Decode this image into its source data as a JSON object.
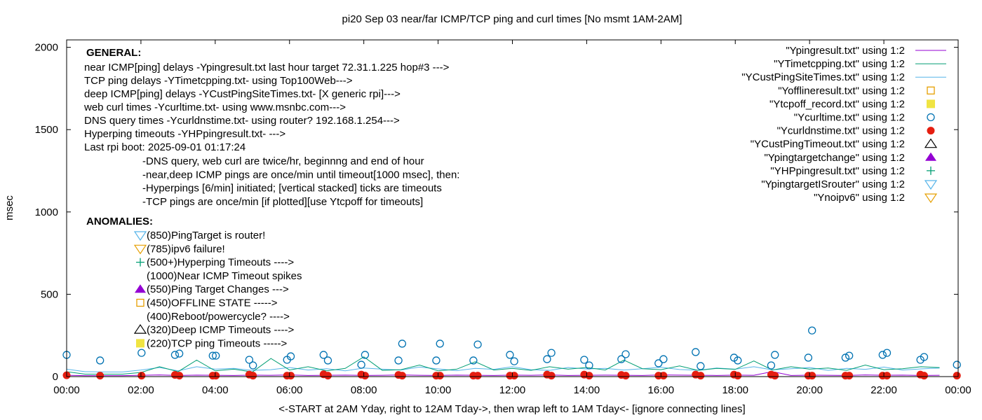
{
  "chart_data": {
    "type": "line",
    "title": "pi20 Sep 03  near/far ICMP/TCP ping and curl times [No msmt 1AM-2AM]",
    "xlabel": "<-START at 2AM Yday, right to 12AM Tday->, then wrap left to 1AM Tday<- [ignore connecting lines]",
    "ylabel": "msec",
    "xlim": [
      "00:00",
      "24:00"
    ],
    "ylim": [
      0,
      2045
    ],
    "x_ticks": [
      "00:00",
      "02:00",
      "04:00",
      "06:00",
      "08:00",
      "10:00",
      "12:00",
      "14:00",
      "16:00",
      "18:00",
      "20:00",
      "22:00",
      "00:00"
    ],
    "y_ticks": [
      0,
      500,
      1000,
      1500,
      2000
    ],
    "grid": false,
    "legend_placement": "top-right",
    "legend": [
      {
        "label": "\"Ypingresult.txt\" using 1:2",
        "style": "line",
        "color": "#9400d3"
      },
      {
        "label": "\"YTimetcpping.txt\" using 1:2",
        "style": "line",
        "color": "#009e73"
      },
      {
        "label": "\"YCustPingSiteTimes.txt\" using 1:2",
        "style": "line",
        "color": "#56b4e9"
      },
      {
        "label": "\"Yofflineresult.txt\" using 1:2",
        "style": "open-square",
        "color": "#e69f00"
      },
      {
        "label": "\"Ytcpoff_record.txt\" using 1:2",
        "style": "filled-square",
        "color": "#f0e442"
      },
      {
        "label": "\"Ycurltime.txt\" using 1:2",
        "style": "open-circle",
        "color": "#0072b2"
      },
      {
        "label": "\"Ycurldnstime.txt\" using 1:2",
        "style": "filled-circle",
        "color": "#e51e10"
      },
      {
        "label": "\"YCustPingTimeout.txt\" using 1:2",
        "style": "open-triangle",
        "color": "#000000"
      },
      {
        "label": "\"Ypingtargetchange\" using 1:2",
        "style": "filled-triangle",
        "color": "#9400d3"
      },
      {
        "label": "\"YHPpingresult.txt\" using 1:2",
        "style": "plus",
        "color": "#009e73"
      },
      {
        "label": "\"YpingtargetISrouter\" using 1:2",
        "style": "open-down-triangle",
        "color": "#56b4e9"
      },
      {
        "label": "\"Ynoipv6\" using 1:2",
        "style": "open-down-triangle",
        "color": "#e69f00"
      }
    ],
    "line_times": [
      "00:00",
      "00:30",
      "01:00",
      "01:30",
      "02:00",
      "02:30",
      "03:00",
      "03:30",
      "04:00",
      "04:30",
      "05:00",
      "05:30",
      "06:00",
      "06:30",
      "07:00",
      "07:30",
      "08:00",
      "08:30",
      "09:00",
      "09:30",
      "10:00",
      "10:30",
      "11:00",
      "11:30",
      "12:00",
      "12:30",
      "13:00",
      "13:30",
      "14:00",
      "14:30",
      "15:00",
      "15:30",
      "16:00",
      "16:30",
      "17:00",
      "17:30",
      "18:00",
      "18:30",
      "19:00",
      "19:30",
      "20:00",
      "20:30",
      "21:00",
      "21:30",
      "22:00",
      "22:30",
      "23:00",
      "23:30"
    ],
    "series": [
      {
        "name": "\"YCustPingSiteTimes.txt\" using 1:2",
        "color": "#56b4e9",
        "values": [
          45,
          30,
          28,
          28,
          40,
          55,
          35,
          60,
          45,
          50,
          38,
          42,
          55,
          40,
          48,
          35,
          52,
          45,
          40,
          58,
          47,
          36,
          50,
          44,
          60,
          42,
          38,
          55,
          46,
          50,
          40,
          48,
          57,
          43,
          39,
          52,
          45,
          60,
          41,
          48,
          55,
          38,
          50,
          44,
          58,
          40,
          47,
          52
        ]
      },
      {
        "name": "\"YTimetcpping.txt\" using 1:2",
        "color": "#009e73",
        "values": [
          30,
          15,
          15,
          15,
          25,
          60,
          30,
          100,
          35,
          45,
          28,
          110,
          40,
          60,
          35,
          50,
          120,
          38,
          42,
          70,
          35,
          45,
          90,
          40,
          50,
          38,
          60,
          45,
          55,
          40,
          100,
          48,
          42,
          65,
          38,
          50,
          44,
          95,
          40,
          60,
          45,
          52,
          38,
          70,
          42,
          48,
          60,
          55
        ]
      },
      {
        "name": "\"Ypingresult.txt\" using 1:2",
        "color": "#9400d3",
        "values": [
          8,
          6,
          6,
          6,
          8,
          10,
          7,
          9,
          8,
          7,
          9,
          8,
          10,
          7,
          8,
          9,
          7,
          8,
          10,
          8,
          7,
          9,
          8,
          7,
          9,
          8,
          10,
          7,
          8,
          9,
          8,
          7,
          10,
          9,
          8,
          7,
          9,
          8,
          30,
          7,
          9,
          8,
          7,
          10,
          8,
          9,
          7,
          8
        ]
      }
    ],
    "curltime_points": [
      [
        "00:00",
        132
      ],
      [
        "00:54",
        98
      ],
      [
        "02:01",
        144
      ],
      [
        "02:55",
        132
      ],
      [
        "03:02",
        140
      ],
      [
        "03:56",
        127
      ],
      [
        "04:01",
        127
      ],
      [
        "04:55",
        102
      ],
      [
        "05:01",
        68
      ],
      [
        "05:56",
        102
      ],
      [
        "06:02",
        123
      ],
      [
        "06:55",
        132
      ],
      [
        "07:02",
        98
      ],
      [
        "07:56",
        72
      ],
      [
        "08:02",
        132
      ],
      [
        "08:56",
        98
      ],
      [
        "09:02",
        200
      ],
      [
        "09:57",
        98
      ],
      [
        "10:03",
        200
      ],
      [
        "10:57",
        98
      ],
      [
        "11:04",
        195
      ],
      [
        "11:56",
        132
      ],
      [
        "12:03",
        93
      ],
      [
        "12:56",
        106
      ],
      [
        "13:03",
        144
      ],
      [
        "13:56",
        102
      ],
      [
        "14:04",
        68
      ],
      [
        "14:56",
        106
      ],
      [
        "15:03",
        136
      ],
      [
        "15:56",
        81
      ],
      [
        "16:04",
        106
      ],
      [
        "16:56",
        149
      ],
      [
        "17:04",
        64
      ],
      [
        "17:58",
        115
      ],
      [
        "18:04",
        98
      ],
      [
        "18:58",
        68
      ],
      [
        "19:04",
        132
      ],
      [
        "19:58",
        115
      ],
      [
        "20:04",
        280
      ],
      [
        "20:58",
        115
      ],
      [
        "21:04",
        127
      ],
      [
        "21:58",
        132
      ],
      [
        "22:05",
        144
      ],
      [
        "22:59",
        102
      ],
      [
        "23:05",
        119
      ],
      [
        "23:58",
        72
      ]
    ],
    "curldnstime_points": [
      [
        "00:00",
        8
      ],
      [
        "00:54",
        6
      ],
      [
        "02:01",
        6
      ],
      [
        "02:55",
        10
      ],
      [
        "03:02",
        6
      ],
      [
        "03:56",
        6
      ],
      [
        "04:01",
        6
      ],
      [
        "04:55",
        12
      ],
      [
        "05:01",
        6
      ],
      [
        "05:56",
        6
      ],
      [
        "06:02",
        6
      ],
      [
        "06:55",
        14
      ],
      [
        "07:02",
        6
      ],
      [
        "07:56",
        12
      ],
      [
        "08:02",
        6
      ],
      [
        "08:56",
        10
      ],
      [
        "09:02",
        6
      ],
      [
        "09:57",
        6
      ],
      [
        "10:03",
        6
      ],
      [
        "10:57",
        6
      ],
      [
        "11:04",
        6
      ],
      [
        "11:56",
        6
      ],
      [
        "12:03",
        6
      ],
      [
        "12:56",
        12
      ],
      [
        "13:03",
        6
      ],
      [
        "13:56",
        12
      ],
      [
        "14:04",
        6
      ],
      [
        "14:56",
        10
      ],
      [
        "15:03",
        6
      ],
      [
        "15:56",
        6
      ],
      [
        "16:04",
        6
      ],
      [
        "16:56",
        12
      ],
      [
        "17:04",
        6
      ],
      [
        "17:58",
        12
      ],
      [
        "18:04",
        6
      ],
      [
        "18:58",
        12
      ],
      [
        "19:04",
        6
      ],
      [
        "19:58",
        6
      ],
      [
        "20:04",
        6
      ],
      [
        "20:58",
        6
      ],
      [
        "21:04",
        6
      ],
      [
        "21:58",
        6
      ],
      [
        "22:05",
        6
      ],
      [
        "22:59",
        12
      ],
      [
        "23:05",
        6
      ],
      [
        "23:58",
        6
      ]
    ],
    "annotations": {
      "general_heading": "GENERAL:",
      "general_lines": [
        "near ICMP[ping] delays -Ypingresult.txt last hour target 72.31.1.225 hop#3 --->",
        "TCP ping delays -YTimetcpping.txt- using Top100Web--->",
        "deep ICMP[ping] delays -YCustPingSiteTimes.txt- [X generic rpi]--->",
        "web curl times -Ycurltime.txt- using www.msnbc.com--->",
        "DNS query times -Ycurldnstime.txt- using router? 192.168.1.254--->",
        "Hyperping timeouts -YHPpingresult.txt- --->",
        "Last rpi boot: 2025-09-01 01:17:24"
      ],
      "notes": [
        "-DNS query, web curl are twice/hr, beginnng and end of hour",
        "-near,deep ICMP pings are once/min until timeout[1000 msec], then:",
        "  -Hyperpings [6/min] initiated; [vertical stacked] ticks are timeouts",
        "-TCP pings are once/min [if plotted][use Ytcpoff for timeouts]"
      ],
      "anomalies_heading": "ANOMALIES:",
      "anomalies": [
        {
          "text": "(850)PingTarget is router!",
          "symbol": "open-down-triangle",
          "color": "#56b4e9"
        },
        {
          "text": "(785)ipv6 failure!",
          "symbol": "open-down-triangle",
          "color": "#e69f00"
        },
        {
          "text": "(500+)Hyperping Timeouts ---->",
          "symbol": "plus",
          "color": "#009e73"
        },
        {
          "text": "(1000)Near ICMP Timeout spikes",
          "symbol": "none",
          "color": ""
        },
        {
          "text": "(550)Ping Target Changes --->",
          "symbol": "filled-triangle",
          "color": "#9400d3"
        },
        {
          "text": "(450)OFFLINE STATE ----->",
          "symbol": "open-square",
          "color": "#e69f00"
        },
        {
          "text": "(400)Reboot/powercycle? ---->",
          "symbol": "none",
          "color": ""
        },
        {
          "text": "(320)Deep ICMP Timeouts ---->",
          "symbol": "open-triangle",
          "color": "#000000"
        },
        {
          "text": "(220)TCP ping Timeouts ----->",
          "symbol": "filled-square",
          "color": "#f0e442"
        }
      ]
    }
  }
}
